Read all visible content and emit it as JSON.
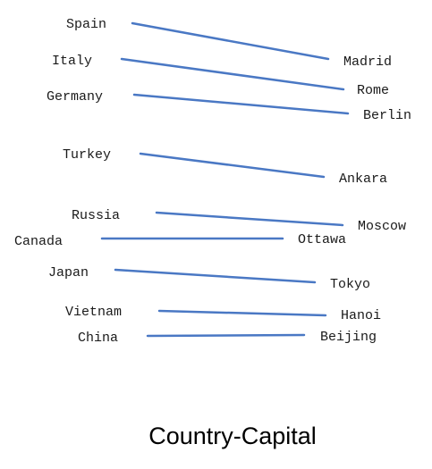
{
  "colors": {
    "line": "#4a78c4",
    "text": "#1a1a1a"
  },
  "pairs": [
    {
      "country": "Spain",
      "capital": "Madrid"
    },
    {
      "country": "Italy",
      "capital": "Rome"
    },
    {
      "country": "Germany",
      "capital": "Berlin"
    },
    {
      "country": "Turkey",
      "capital": "Ankara"
    },
    {
      "country": "Russia",
      "capital": "Moscow"
    },
    {
      "country": "Canada",
      "capital": "Ottawa"
    },
    {
      "country": "Japan",
      "capital": "Tokyo"
    },
    {
      "country": "Vietnam",
      "capital": "Hanoi"
    },
    {
      "country": "China",
      "capital": "Beijing"
    }
  ],
  "caption": "Country-Capital"
}
